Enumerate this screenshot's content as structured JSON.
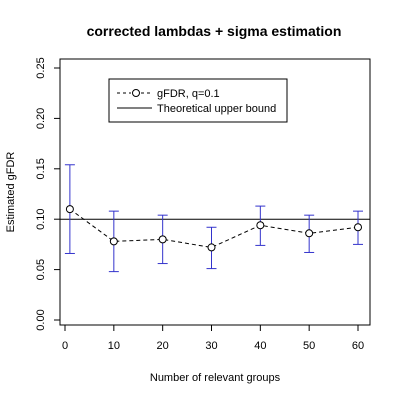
{
  "chart_data": {
    "type": "line",
    "title": "corrected lambdas + sigma estimation",
    "xlabel": "Number of relevant groups",
    "ylabel": "Estimated gFDR",
    "xlim": [
      0,
      62
    ],
    "ylim": [
      0,
      0.25
    ],
    "x_ticks": [
      "0",
      "10",
      "20",
      "30",
      "40",
      "50",
      "60"
    ],
    "x_tick_values": [
      0,
      10,
      20,
      30,
      40,
      50,
      60
    ],
    "y_ticks": [
      "0.00",
      "0.05",
      "0.10",
      "0.15",
      "0.20",
      "0.25"
    ],
    "y_tick_values": [
      0,
      0.05,
      0.1,
      0.15,
      0.2,
      0.25
    ],
    "grid": false,
    "legend_position": "top-left",
    "series": [
      {
        "name": "gFDR, q=0.1",
        "style": "dashed-with-circles",
        "color": "#000000",
        "x": [
          1,
          10,
          20,
          30,
          40,
          50,
          60
        ],
        "y": [
          0.11,
          0.078,
          0.08,
          0.072,
          0.094,
          0.086,
          0.092
        ],
        "err_low": [
          0.066,
          0.048,
          0.056,
          0.051,
          0.074,
          0.067,
          0.075
        ],
        "err_high": [
          0.154,
          0.108,
          0.104,
          0.092,
          0.113,
          0.104,
          0.108
        ],
        "err_color": "#3333cc"
      }
    ],
    "reference_lines": [
      {
        "name": "Theoretical upper bound",
        "y": 0.1,
        "color": "#000000"
      }
    ]
  }
}
